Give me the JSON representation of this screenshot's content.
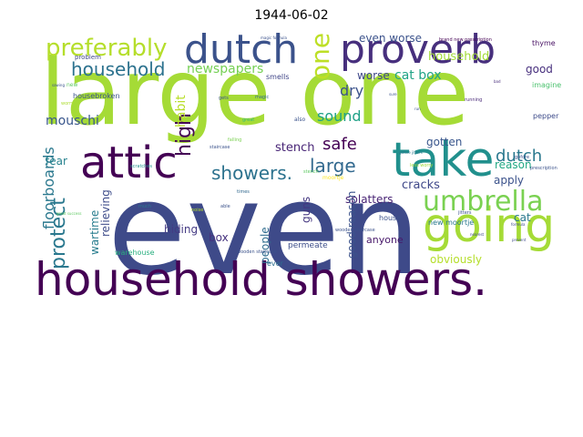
{
  "figure": {
    "title": "1944-06-02"
  },
  "word_cloud": {
    "words": [
      {
        "text": "even",
        "color": "#3e4a89"
      },
      {
        "text": "large one",
        "color": "#a5db36"
      },
      {
        "text": "household showers.",
        "color": "#440154"
      },
      {
        "text": "going",
        "color": "#a5db36"
      },
      {
        "text": "take",
        "color": "#21908d"
      },
      {
        "text": "attic",
        "color": "#440154"
      },
      {
        "text": "dutch",
        "color": "#3b528b"
      },
      {
        "text": "proverb",
        "color": "#472f7d"
      },
      {
        "text": "umbrella",
        "color": "#7ad151"
      },
      {
        "text": "preferably",
        "color": "#b5de2b"
      },
      {
        "text": "household",
        "color": "#2c728e"
      },
      {
        "text": "one",
        "color": "#bddf26"
      },
      {
        "text": "protect",
        "color": "#2a788e"
      },
      {
        "text": "showers.",
        "color": "#2c728e"
      },
      {
        "text": "large",
        "color": "#31688e"
      },
      {
        "text": "high",
        "color": "#440154"
      },
      {
        "text": "safe",
        "color": "#440154"
      },
      {
        "text": "sound",
        "color": "#1fa187"
      },
      {
        "text": "dry",
        "color": "#3b528b"
      },
      {
        "text": "dutch",
        "color": "#2a788e"
      },
      {
        "text": "floorboards",
        "color": "#2a788e"
      },
      {
        "text": "newspapers",
        "color": "#75d054"
      },
      {
        "text": "even worse",
        "color": "#3b528b"
      },
      {
        "text": "cat box",
        "color": "#20a386"
      },
      {
        "text": "household",
        "color": "#a2da37"
      },
      {
        "text": "good",
        "color": "#472f7d"
      },
      {
        "text": "habit",
        "color": "#b8de29"
      },
      {
        "text": "mouschi",
        "color": "#39568c"
      },
      {
        "text": "stench",
        "color": "#482576"
      },
      {
        "text": "worse",
        "color": "#3f4889"
      },
      {
        "text": "reason",
        "color": "#22a884"
      },
      {
        "text": "gotten",
        "color": "#39568c"
      },
      {
        "text": "apply",
        "color": "#3b528b"
      },
      {
        "text": "fear",
        "color": "#26828e"
      },
      {
        "text": "cracks",
        "color": "#3f4889"
      },
      {
        "text": "splatters",
        "color": "#482374"
      },
      {
        "text": "wartime",
        "color": "#287d8e"
      },
      {
        "text": "relieving",
        "color": "#3e4c8a"
      },
      {
        "text": "hiding",
        "color": "#443a83"
      },
      {
        "text": "people",
        "color": "#2f6c8e"
      },
      {
        "text": "guns",
        "color": "#453781"
      },
      {
        "text": "good reason",
        "color": "#3b528b"
      },
      {
        "text": "cat",
        "color": "#2a788e"
      },
      {
        "text": "box",
        "color": "#46327e"
      },
      {
        "text": "obviously",
        "color": "#b5de2b"
      },
      {
        "text": "anyone",
        "color": "#48186a"
      },
      {
        "text": "warehouse",
        "color": "#29af7f"
      },
      {
        "text": "permeate",
        "color": "#3d4e8a"
      },
      {
        "text": "ever",
        "color": "#2e6e8e"
      },
      {
        "text": "house",
        "color": "#3b528b"
      },
      {
        "text": "new moortje",
        "color": "#2a788e"
      },
      {
        "text": "housebroken",
        "color": "#3b528b"
      },
      {
        "text": "thyme",
        "color": "#471063"
      },
      {
        "text": "imagine",
        "color": "#4ac16d"
      },
      {
        "text": "pepper",
        "color": "#3e4c8a"
      },
      {
        "text": "problem",
        "color": "#404688"
      },
      {
        "text": "smells",
        "color": "#404688"
      },
      {
        "text": "new",
        "color": "#5ec962"
      },
      {
        "text": "worry",
        "color": "#addc30"
      },
      {
        "text": "gets",
        "color": "#3b528b"
      },
      {
        "text": "magic",
        "color": "#31688e"
      },
      {
        "text": "great",
        "color": "#35b779"
      },
      {
        "text": "also",
        "color": "#3b528b"
      },
      {
        "text": "scratches",
        "color": "#21918c"
      },
      {
        "text": "less worry",
        "color": "#9fda3a"
      },
      {
        "text": "stench",
        "color": "#5ec962"
      },
      {
        "text": "much",
        "color": "#2a788e"
      },
      {
        "text": "able",
        "color": "#3b528b"
      },
      {
        "text": "times",
        "color": "#31688e"
      },
      {
        "text": "sure",
        "color": "#3b528b"
      },
      {
        "text": "running",
        "color": "#482878"
      },
      {
        "text": "bad",
        "color": "#472c7a"
      },
      {
        "text": "falling",
        "color": "#7ad151"
      },
      {
        "text": "moortje",
        "color": "#fde725"
      },
      {
        "text": "wooden staircase",
        "color": "#3b528b"
      },
      {
        "text": "brand new prescription",
        "color": "#440154"
      },
      {
        "text": "formula",
        "color": "#3e4a89"
      },
      {
        "text": "prevent",
        "color": "#3e4a89"
      },
      {
        "text": "jitters",
        "color": "#3b528b"
      },
      {
        "text": "nearest",
        "color": "#3e4a89"
      },
      {
        "text": "gofore",
        "color": "#3b528b"
      },
      {
        "text": "staircase",
        "color": "#3b528b"
      },
      {
        "text": "sawing",
        "color": "#3b528b"
      },
      {
        "text": "magic formula",
        "color": "#3b528b"
      },
      {
        "text": "noise",
        "color": "#b5de2b"
      },
      {
        "text": "run",
        "color": "#3b528b"
      },
      {
        "text": "gofore jitters",
        "color": "#2a788e"
      },
      {
        "text": "great success",
        "color": "#5ec962"
      },
      {
        "text": "prescription",
        "color": "#3b528b"
      },
      {
        "text": "wooden staircase",
        "color": "#3b528b"
      }
    ]
  }
}
